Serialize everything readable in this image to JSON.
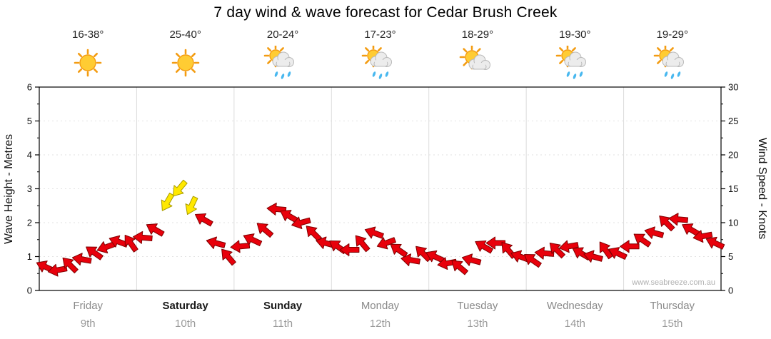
{
  "title": "7 day wind & wave forecast for Cedar Brush Creek",
  "watermark": "www.seabreeze.com.au",
  "y_left": {
    "label": "Wave Height - Metres",
    "ticks": [
      0,
      1,
      2,
      3,
      4,
      5,
      6
    ],
    "range": [
      0,
      6
    ]
  },
  "y_right": {
    "label": "Wind Speed - Knots",
    "ticks": [
      0,
      5,
      10,
      15,
      20,
      25,
      30
    ],
    "range": [
      0,
      30
    ]
  },
  "days": [
    {
      "name": "Friday",
      "date": "9th",
      "temp": "16-38°",
      "icon": "sunny",
      "bold": false
    },
    {
      "name": "Saturday",
      "date": "10th",
      "temp": "25-40°",
      "icon": "sunny",
      "bold": true
    },
    {
      "name": "Sunday",
      "date": "11th",
      "temp": "20-24°",
      "icon": "showers",
      "bold": true
    },
    {
      "name": "Monday",
      "date": "12th",
      "temp": "17-23°",
      "icon": "showers",
      "bold": false
    },
    {
      "name": "Tuesday",
      "date": "13th",
      "temp": "18-29°",
      "icon": "partly-cloudy",
      "bold": false
    },
    {
      "name": "Wednesday",
      "date": "14th",
      "temp": "19-30°",
      "icon": "showers",
      "bold": false
    },
    {
      "name": "Thursday",
      "date": "15th",
      "temp": "19-29°",
      "icon": "showers",
      "bold": false
    }
  ],
  "chart_data": {
    "type": "scatter",
    "marker": "directional-wind-arrow",
    "title": "7 day wind & wave forecast for Cedar Brush Creek",
    "x_categories": [
      "Friday 9th",
      "Saturday 10th",
      "Sunday 11th",
      "Monday 12th",
      "Tuesday 13th",
      "Wednesday 14th",
      "Thursday 15th"
    ],
    "points_per_day": 8,
    "left_axis": {
      "label": "Wave Height - Metres",
      "range": [
        0,
        6
      ]
    },
    "right_axis": {
      "label": "Wind Speed - Knots",
      "range": [
        0,
        30
      ]
    },
    "scale_note": "shared axis: 1 metre wave = 5 knots wind",
    "wind_speed_knots": [
      3.5,
      3,
      3.8,
      4.6,
      5.6,
      6.4,
      7.2,
      7,
      7.8,
      9,
      13,
      15,
      12.5,
      10.5,
      7,
      5,
      6.5,
      7.5,
      9,
      12,
      11,
      10,
      8.5,
      7,
      6.5,
      6,
      7,
      8.5,
      7,
      6,
      4.5,
      5.5,
      5,
      4,
      3.5,
      4.5,
      6.5,
      7,
      6,
      5,
      4.5,
      5.5,
      6,
      6.5,
      5.5,
      5,
      6,
      5.5,
      6.5,
      7.5,
      8.5,
      10,
      10.5,
      9,
      8,
      7
    ],
    "arrow_direction_deg": [
      205,
      170,
      225,
      190,
      215,
      160,
      200,
      235,
      185,
      210,
      120,
      130,
      115,
      210,
      195,
      230,
      175,
      205,
      220,
      185,
      210,
      165,
      225,
      195,
      215,
      180,
      230,
      200,
      160,
      215,
      190,
      225,
      205,
      170,
      220,
      195,
      210,
      180,
      230,
      200,
      215,
      185,
      225,
      170,
      210,
      195,
      235,
      205,
      180,
      215,
      195,
      225,
      185,
      210,
      170,
      205
    ],
    "arrow_colors": [
      "r",
      "r",
      "r",
      "r",
      "r",
      "r",
      "r",
      "r",
      "r",
      "r",
      "y",
      "y",
      "y",
      "r",
      "r",
      "r",
      "r",
      "r",
      "r",
      "r",
      "r",
      "r",
      "r",
      "r",
      "r",
      "r",
      "r",
      "r",
      "r",
      "r",
      "r",
      "r",
      "r",
      "r",
      "r",
      "r",
      "r",
      "r",
      "r",
      "r",
      "r",
      "r",
      "r",
      "r",
      "r",
      "r",
      "r",
      "r",
      "r",
      "r",
      "r",
      "r",
      "r",
      "r",
      "r",
      "r"
    ]
  },
  "colors": {
    "arrow_red": "#e8000b",
    "arrow_red_dark": "#7f0000",
    "arrow_yellow": "#ffe800",
    "arrow_yellow_dark": "#a89b00",
    "grid": "#dcdcdc",
    "axis": "#000000",
    "day_muted": "#8a8a8a",
    "day_bold": "#1a1a1a",
    "watermark_color": "#b0b0b0",
    "sun": "#ffcc33",
    "sun_ray": "#f39c12",
    "cloud": "#ececec",
    "rain": "#49b8ef"
  }
}
